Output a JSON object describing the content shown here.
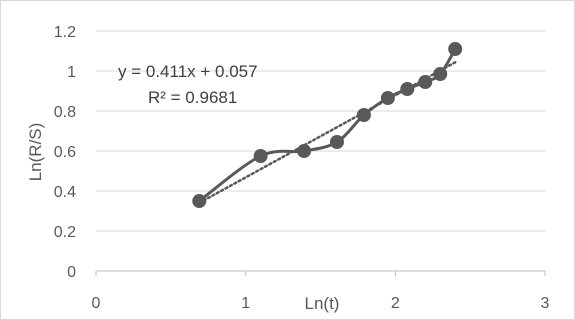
{
  "chart_data": {
    "type": "scatter",
    "title": "",
    "xlabel": "Ln(t)",
    "ylabel": "Ln(R/S)",
    "xlim": [
      0,
      3
    ],
    "ylim": [
      0,
      1.2
    ],
    "x_ticks": [
      0,
      1,
      2,
      3
    ],
    "x_tick_labels": [
      "0",
      "1",
      "2",
      "3"
    ],
    "y_ticks": [
      0,
      0.2,
      0.4,
      0.6,
      0.8,
      1,
      1.2
    ],
    "y_tick_labels": [
      "0",
      "0.2",
      "0.4",
      "0.6",
      "0.8",
      "1",
      "1.2"
    ],
    "grid": "horizontal",
    "series": [
      {
        "x": [
          0.69,
          1.1,
          1.39,
          1.61,
          1.79,
          1.95,
          2.08,
          2.2,
          2.3,
          2.4
        ],
        "y": [
          0.35,
          0.575,
          0.6,
          0.645,
          0.78,
          0.865,
          0.91,
          0.945,
          0.985,
          1.11
        ],
        "color": "#595959",
        "line": "solid",
        "marker": "circle"
      }
    ],
    "trendline": {
      "type": "linear",
      "slope": 0.411,
      "intercept": 0.057,
      "color": "#595959",
      "line": "dotted"
    },
    "annotations": [
      "y = 0.411x + 0.057",
      "R² = 0.9681"
    ]
  }
}
